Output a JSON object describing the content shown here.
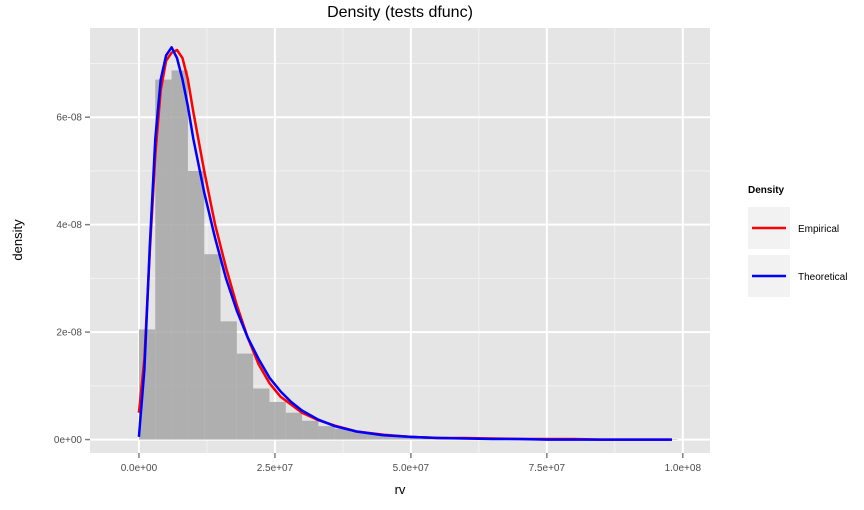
{
  "chart_data": {
    "type": "bar",
    "title": "Density (tests dfunc)",
    "xlabel": "rv",
    "ylabel": "density",
    "xlim": [
      -9000000,
      105000000
    ],
    "ylim": [
      -2.5e-09,
      7.66e-08
    ],
    "x_ticks": [
      0,
      25000000,
      50000000,
      75000000,
      100000000
    ],
    "x_tick_labels": [
      "0.0e+00",
      "2.5e+07",
      "5.0e+07",
      "7.5e+07",
      "1.0e+08"
    ],
    "y_ticks": [
      0,
      2e-08,
      4e-08,
      6e-08
    ],
    "y_tick_labels": [
      "0e+00",
      "2e-08",
      "4e-08",
      "6e-08"
    ],
    "grid": true,
    "legend_position": "right",
    "legend": {
      "title": "Density",
      "entries": [
        {
          "label": "Empirical",
          "color": "#ff0000"
        },
        {
          "label": "Theoretical",
          "color": "#0000ff"
        }
      ]
    },
    "colors": {
      "panel": "#e5e5e5",
      "grid_major": "#ffffff",
      "grid_minor": "#f2f2f2",
      "bars": "#a6a6a6",
      "empirical": "#ff0000",
      "theoretical": "#0000ff",
      "tick_mark": "#7f7f7f"
    },
    "histogram": {
      "bin_width": 3000000,
      "bin_starts": [
        0,
        3000000,
        6000000,
        9000000,
        12000000,
        15000000,
        18000000,
        21000000,
        24000000,
        27000000,
        30000000,
        33000000,
        36000000,
        39000000,
        42000000,
        45000000,
        48000000,
        51000000,
        54000000,
        57000000,
        60000000,
        63000000,
        66000000,
        69000000,
        72000000,
        75000000,
        78000000,
        81000000,
        84000000,
        87000000,
        90000000,
        93000000,
        96000000
      ],
      "values": [
        2.05e-08,
        6.7e-08,
        6.87e-08,
        5e-08,
        3.45e-08,
        2.2e-08,
        1.6e-08,
        9.5e-09,
        7e-09,
        5e-09,
        3.5e-09,
        2.5e-09,
        2e-09,
        1.4e-09,
        1.1e-09,
        9e-10,
        7e-10,
        6e-10,
        5e-10,
        4e-10,
        3e-10,
        3e-10,
        2.5e-10,
        2e-10,
        2e-10,
        1.5e-10,
        1.5e-10,
        1e-10,
        1e-10,
        1e-10,
        1e-10,
        1e-10,
        1e-10
      ]
    },
    "series": [
      {
        "name": "Empirical",
        "x": [
          0,
          1000000,
          2000000,
          3000000,
          4000000,
          5000000,
          6000000,
          7000000,
          8000000,
          9000000,
          10000000,
          12000000,
          14000000,
          16000000,
          18000000,
          20000000,
          22000000,
          24000000,
          26000000,
          28000000,
          30000000,
          33000000,
          36000000,
          40000000,
          45000000,
          50000000,
          55000000,
          60000000,
          65000000,
          70000000,
          75000000,
          80000000,
          85000000,
          90000000,
          98000000
        ],
        "y": [
          5e-09,
          1.5e-08,
          3.5e-08,
          5.3e-08,
          6.5e-08,
          7.05e-08,
          7.2e-08,
          7.25e-08,
          7.1e-08,
          6.7e-08,
          6.1e-08,
          5e-08,
          4e-08,
          3.2e-08,
          2.5e-08,
          1.9e-08,
          1.4e-08,
          1.05e-08,
          8e-09,
          6.5e-09,
          5e-09,
          3.6e-09,
          2.6e-09,
          1.5e-09,
          9e-10,
          5e-10,
          3e-10,
          3e-10,
          2e-10,
          1e-10,
          1e-10,
          1e-10,
          0.0,
          0.0,
          0.0
        ]
      },
      {
        "name": "Theoretical",
        "x": [
          0,
          1000000,
          2000000,
          3000000,
          4000000,
          5000000,
          6000000,
          7000000,
          8000000,
          9000000,
          10000000,
          12000000,
          14000000,
          16000000,
          18000000,
          20000000,
          22000000,
          24000000,
          26000000,
          28000000,
          30000000,
          33000000,
          36000000,
          40000000,
          45000000,
          50000000,
          55000000,
          60000000,
          65000000,
          70000000,
          75000000,
          80000000,
          85000000,
          90000000,
          98000000
        ],
        "y": [
          5e-10,
          1.3e-08,
          3.6e-08,
          5.6e-08,
          6.7e-08,
          7.15e-08,
          7.3e-08,
          7.1e-08,
          6.7e-08,
          6.2e-08,
          5.6e-08,
          4.6e-08,
          3.75e-08,
          3e-08,
          2.4e-08,
          1.9e-08,
          1.5e-08,
          1.15e-08,
          9e-09,
          7e-09,
          5.4e-09,
          3.7e-09,
          2.5e-09,
          1.5e-09,
          8e-10,
          5e-10,
          3e-10,
          2e-10,
          1e-10,
          1e-10,
          0.0,
          0.0,
          0.0,
          0.0,
          0.0
        ]
      }
    ]
  }
}
